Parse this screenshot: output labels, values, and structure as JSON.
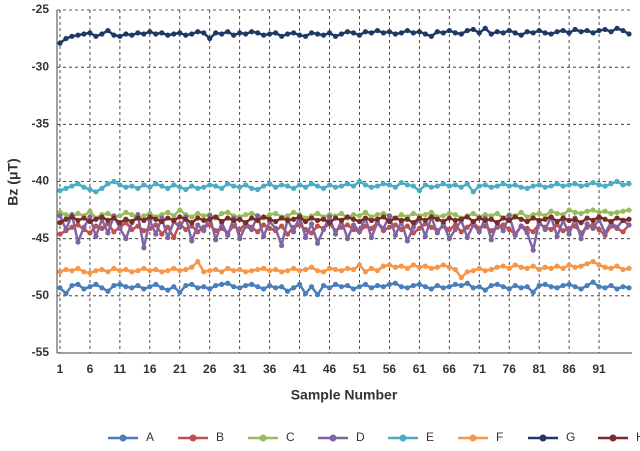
{
  "chart_data": {
    "type": "line",
    "xlabel": "Sample Number",
    "ylabel": "Bz (μT)",
    "xlim": [
      0.5,
      96.5
    ],
    "xticks": [
      1,
      6,
      11,
      16,
      21,
      26,
      31,
      36,
      41,
      46,
      51,
      56,
      61,
      66,
      71,
      76,
      81,
      86,
      91
    ],
    "ylim": [
      -55,
      -25
    ],
    "yticks": [
      -55,
      -50,
      -45,
      -40,
      -35,
      -30,
      -25
    ],
    "grid": true,
    "legend": "bottom",
    "x": [
      1,
      2,
      3,
      4,
      5,
      6,
      7,
      8,
      9,
      10,
      11,
      12,
      13,
      14,
      15,
      16,
      17,
      18,
      19,
      20,
      21,
      22,
      23,
      24,
      25,
      26,
      27,
      28,
      29,
      30,
      31,
      32,
      33,
      34,
      35,
      36,
      37,
      38,
      39,
      40,
      41,
      42,
      43,
      44,
      45,
      46,
      47,
      48,
      49,
      50,
      51,
      52,
      53,
      54,
      55,
      56,
      57,
      58,
      59,
      60,
      61,
      62,
      63,
      64,
      65,
      66,
      67,
      68,
      69,
      70,
      71,
      72,
      73,
      74,
      75,
      76,
      77,
      78,
      79,
      80,
      81,
      82,
      83,
      84,
      85,
      86,
      87,
      88,
      89,
      90,
      91,
      92,
      93,
      94,
      95,
      96
    ],
    "series": [
      {
        "name": "A",
        "color": "#4a7ebb",
        "values": [
          -49.3,
          -49.8,
          -49.1,
          -49.0,
          -49.4,
          -49.2,
          -49.0,
          -49.3,
          -49.6,
          -49.1,
          -49.0,
          -49.2,
          -49.3,
          -49.1,
          -49.4,
          -49.2,
          -49.0,
          -49.3,
          -49.5,
          -49.2,
          -49.7,
          -49.1,
          -49.0,
          -49.3,
          -49.2,
          -49.4,
          -49.1,
          -49.0,
          -48.9,
          -49.2,
          -49.3,
          -49.1,
          -49.0,
          -49.2,
          -49.4,
          -49.1,
          -49.3,
          -49.2,
          -49.6,
          -49.3,
          -49.0,
          -49.8,
          -49.2,
          -49.9,
          -49.1,
          -49.3,
          -49.0,
          -49.2,
          -49.1,
          -49.4,
          -49.2,
          -49.0,
          -49.3,
          -49.1,
          -49.2,
          -49.0,
          -48.9,
          -49.2,
          -49.3,
          -49.1,
          -49.0,
          -49.2,
          -49.4,
          -49.1,
          -49.3,
          -49.2,
          -49.0,
          -49.1,
          -48.9,
          -49.3,
          -49.2,
          -49.5,
          -49.1,
          -49.0,
          -49.2,
          -49.4,
          -49.1,
          -49.3,
          -49.2,
          -49.7,
          -49.1,
          -49.0,
          -49.2,
          -49.3,
          -49.1,
          -49.0,
          -49.2,
          -49.4,
          -49.1,
          -48.8,
          -49.2,
          -49.3,
          -49.1,
          -49.4,
          -49.2,
          -49.3
        ]
      },
      {
        "name": "B",
        "color": "#c0504d",
        "values": [
          -44.6,
          -44.3,
          -44.0,
          -43.8,
          -44.2,
          -44.5,
          -43.9,
          -44.1,
          -43.7,
          -44.4,
          -44.0,
          -43.6,
          -44.2,
          -43.9,
          -44.3,
          -44.1,
          -43.8,
          -44.6,
          -44.0,
          -44.9,
          -43.7,
          -44.2,
          -43.9,
          -44.4,
          -44.0,
          -43.8,
          -44.3,
          -44.1,
          -44.5,
          -43.9,
          -44.2,
          -43.7,
          -44.0,
          -44.4,
          -43.8,
          -44.1,
          -44.3,
          -43.9,
          -44.6,
          -44.0,
          -43.8,
          -44.2,
          -44.5,
          -43.9,
          -44.1,
          -43.7,
          -44.3,
          -44.0,
          -43.8,
          -44.2,
          -44.4,
          -43.9,
          -44.1,
          -43.6,
          -44.3,
          -44.0,
          -43.8,
          -44.2,
          -43.9,
          -44.5,
          -44.1,
          -43.7,
          -44.0,
          -44.3,
          -43.9,
          -44.2,
          -43.8,
          -44.4,
          -44.0,
          -43.6,
          -44.1,
          -43.9,
          -44.3,
          -44.0,
          -43.8,
          -44.2,
          -44.6,
          -43.9,
          -44.1,
          -44.4,
          -43.7,
          -44.0,
          -44.2,
          -43.8,
          -44.3,
          -44.1,
          -43.9,
          -44.5,
          -44.0,
          -43.8,
          -44.2,
          -44.7,
          -43.9,
          -44.1,
          -44.4,
          -43.8
        ]
      },
      {
        "name": "C",
        "color": "#9bbb59",
        "values": [
          -42.7,
          -42.9,
          -43.1,
          -42.8,
          -43.0,
          -42.6,
          -43.2,
          -42.9,
          -42.8,
          -43.1,
          -43.0,
          -42.7,
          -42.9,
          -43.2,
          -43.0,
          -42.8,
          -43.1,
          -42.9,
          -42.7,
          -43.0,
          -42.5,
          -42.9,
          -43.1,
          -42.8,
          -43.0,
          -42.9,
          -43.2,
          -42.8,
          -42.7,
          -43.0,
          -43.1,
          -42.9,
          -42.8,
          -43.0,
          -43.2,
          -42.9,
          -42.8,
          -43.1,
          -43.0,
          -42.7,
          -42.9,
          -43.2,
          -43.0,
          -42.8,
          -43.1,
          -42.9,
          -43.0,
          -42.8,
          -43.2,
          -42.9,
          -43.0,
          -42.7,
          -43.1,
          -42.9,
          -42.8,
          -43.0,
          -43.2,
          -42.9,
          -43.1,
          -42.8,
          -43.0,
          -42.9,
          -42.7,
          -43.1,
          -43.0,
          -42.8,
          -42.9,
          -43.2,
          -43.0,
          -42.8,
          -43.1,
          -42.9,
          -43.0,
          -42.8,
          -43.2,
          -42.9,
          -43.0,
          -42.7,
          -43.1,
          -42.9,
          -42.8,
          -43.0,
          -42.6,
          -42.8,
          -42.9,
          -42.5,
          -42.7,
          -42.8,
          -42.6,
          -42.5,
          -42.7,
          -42.6,
          -42.8,
          -42.7,
          -42.6,
          -42.5
        ]
      },
      {
        "name": "D",
        "color": "#8064a2",
        "values": [
          -43.0,
          -44.2,
          -42.9,
          -45.3,
          -44.0,
          -43.1,
          -44.8,
          -43.3,
          -44.5,
          -43.0,
          -44.1,
          -45.0,
          -43.6,
          -42.9,
          -45.8,
          -43.4,
          -44.6,
          -43.2,
          -44.9,
          -43.5,
          -44.0,
          -43.1,
          -45.2,
          -43.8,
          -44.3,
          -43.0,
          -45.1,
          -43.6,
          -44.7,
          -43.2,
          -45.0,
          -43.9,
          -44.2,
          -43.0,
          -44.8,
          -43.5,
          -44.1,
          -45.6,
          -43.3,
          -44.4,
          -43.0,
          -44.9,
          -43.7,
          -45.4,
          -44.2,
          -43.1,
          -44.6,
          -43.4,
          -45.0,
          -43.8,
          -44.3,
          -43.2,
          -44.9,
          -43.6,
          -44.1,
          -43.0,
          -44.7,
          -43.5,
          -45.2,
          -44.0,
          -43.3,
          -44.8,
          -43.1,
          -44.5,
          -43.7,
          -45.0,
          -44.2,
          -43.4,
          -44.9,
          -43.8,
          -44.4,
          -43.2,
          -45.1,
          -43.6,
          -44.3,
          -43.0,
          -44.7,
          -43.9,
          -44.5,
          -46.0,
          -43.5,
          -44.2,
          -43.1,
          -44.8,
          -43.4,
          -44.6,
          -43.2,
          -45.0,
          -43.7,
          -44.1,
          -43.3,
          -44.5,
          -43.6,
          -44.0,
          -43.4,
          -43.8
        ]
      },
      {
        "name": "E",
        "color": "#4bacc6",
        "values": [
          -40.8,
          -40.6,
          -40.4,
          -40.2,
          -40.5,
          -40.7,
          -40.9,
          -40.6,
          -40.2,
          -40.0,
          -40.3,
          -40.5,
          -40.4,
          -40.6,
          -40.3,
          -40.5,
          -40.2,
          -40.4,
          -40.6,
          -40.3,
          -40.5,
          -40.7,
          -40.4,
          -40.6,
          -40.5,
          -40.3,
          -40.4,
          -40.6,
          -40.2,
          -40.4,
          -40.5,
          -40.3,
          -40.6,
          -40.7,
          -40.4,
          -40.2,
          -40.5,
          -40.3,
          -40.4,
          -40.6,
          -40.3,
          -40.5,
          -40.2,
          -40.4,
          -40.6,
          -40.3,
          -40.5,
          -40.4,
          -40.2,
          -40.4,
          -40.0,
          -40.3,
          -40.5,
          -40.4,
          -40.2,
          -40.3,
          -40.5,
          -40.1,
          -40.3,
          -40.4,
          -40.8,
          -40.3,
          -40.5,
          -40.4,
          -40.2,
          -40.4,
          -40.3,
          -40.5,
          -40.2,
          -40.9,
          -40.4,
          -40.3,
          -40.5,
          -40.4,
          -40.2,
          -40.4,
          -40.3,
          -40.5,
          -40.6,
          -40.4,
          -40.3,
          -40.5,
          -40.4,
          -40.2,
          -40.4,
          -40.3,
          -40.2,
          -40.4,
          -40.3,
          -40.1,
          -40.3,
          -40.4,
          -40.2,
          -40.0,
          -40.3,
          -40.2
        ]
      },
      {
        "name": "F",
        "color": "#f79646",
        "values": [
          -47.9,
          -47.7,
          -47.8,
          -47.6,
          -47.9,
          -48.0,
          -47.8,
          -47.7,
          -47.9,
          -47.6,
          -47.8,
          -47.7,
          -47.9,
          -47.8,
          -47.6,
          -47.8,
          -47.7,
          -47.9,
          -47.8,
          -47.6,
          -47.8,
          -47.7,
          -47.5,
          -47.0,
          -47.9,
          -47.8,
          -47.7,
          -47.9,
          -47.6,
          -47.8,
          -47.7,
          -47.9,
          -47.8,
          -47.7,
          -47.6,
          -47.8,
          -47.7,
          -47.9,
          -47.8,
          -47.6,
          -47.8,
          -47.7,
          -47.5,
          -47.8,
          -47.9,
          -47.6,
          -47.7,
          -47.8,
          -47.6,
          -47.7,
          -47.3,
          -47.9,
          -47.6,
          -47.8,
          -47.4,
          -47.3,
          -47.5,
          -47.4,
          -47.6,
          -47.3,
          -47.5,
          -47.4,
          -47.6,
          -47.5,
          -47.3,
          -47.5,
          -47.7,
          -48.4,
          -47.9,
          -47.8,
          -47.6,
          -47.8,
          -47.7,
          -47.5,
          -47.4,
          -47.6,
          -47.3,
          -47.5,
          -47.6,
          -47.4,
          -47.7,
          -47.5,
          -47.6,
          -47.4,
          -47.6,
          -47.3,
          -47.5,
          -47.4,
          -47.2,
          -47.0,
          -47.3,
          -47.5,
          -47.6,
          -47.4,
          -47.7,
          -47.6
        ]
      },
      {
        "name": "G",
        "color": "#1f3864",
        "values": [
          -27.9,
          -27.5,
          -27.3,
          -27.2,
          -27.1,
          -27.0,
          -27.3,
          -27.1,
          -26.8,
          -27.2,
          -27.3,
          -27.1,
          -27.2,
          -27.0,
          -27.1,
          -26.9,
          -27.1,
          -27.0,
          -27.2,
          -27.1,
          -27.0,
          -27.2,
          -27.1,
          -26.9,
          -27.0,
          -27.5,
          -27.0,
          -27.1,
          -26.9,
          -27.2,
          -27.0,
          -27.1,
          -26.9,
          -27.0,
          -27.2,
          -27.1,
          -27.0,
          -27.3,
          -27.1,
          -27.0,
          -27.2,
          -27.3,
          -27.0,
          -27.1,
          -27.2,
          -27.0,
          -27.3,
          -27.1,
          -26.9,
          -27.0,
          -27.2,
          -26.9,
          -27.0,
          -26.8,
          -27.0,
          -26.9,
          -27.1,
          -27.0,
          -26.8,
          -27.0,
          -26.9,
          -27.1,
          -27.3,
          -26.9,
          -27.0,
          -26.8,
          -27.0,
          -27.1,
          -26.8,
          -26.7,
          -27.0,
          -26.6,
          -27.1,
          -26.9,
          -27.0,
          -26.8,
          -27.0,
          -27.2,
          -26.9,
          -27.0,
          -26.8,
          -27.0,
          -27.1,
          -26.9,
          -26.8,
          -27.0,
          -26.7,
          -26.9,
          -26.8,
          -27.0,
          -26.8,
          -26.7,
          -26.9,
          -26.6,
          -26.8,
          -27.1
        ]
      },
      {
        "name": "H",
        "color": "#772c2a",
        "values": [
          -43.6,
          -43.3,
          -43.1,
          -43.4,
          -43.2,
          -43.5,
          -43.3,
          -43.1,
          -43.4,
          -43.2,
          -43.6,
          -43.3,
          -43.5,
          -43.2,
          -43.4,
          -43.1,
          -43.3,
          -43.5,
          -43.2,
          -43.4,
          -43.1,
          -43.3,
          -43.6,
          -43.2,
          -43.4,
          -43.3,
          -43.1,
          -43.5,
          -43.2,
          -43.4,
          -43.3,
          -43.6,
          -43.2,
          -43.4,
          -43.1,
          -43.3,
          -43.5,
          -43.2,
          -43.4,
          -43.3,
          -43.1,
          -43.5,
          -43.2,
          -43.4,
          -43.3,
          -43.6,
          -43.2,
          -43.4,
          -43.1,
          -43.3,
          -43.5,
          -43.2,
          -43.4,
          -43.3,
          -43.1,
          -43.5,
          -43.2,
          -43.4,
          -43.3,
          -43.6,
          -43.2,
          -43.4,
          -43.1,
          -43.3,
          -43.5,
          -43.2,
          -43.4,
          -43.3,
          -43.1,
          -43.5,
          -43.2,
          -43.4,
          -43.3,
          -43.6,
          -43.2,
          -43.4,
          -43.1,
          -43.3,
          -43.5,
          -43.2,
          -43.4,
          -43.3,
          -43.1,
          -43.5,
          -43.2,
          -43.4,
          -43.3,
          -43.6,
          -43.2,
          -43.4,
          -43.1,
          -43.3,
          -43.5,
          -43.2,
          -43.4,
          -43.3
        ]
      }
    ]
  }
}
